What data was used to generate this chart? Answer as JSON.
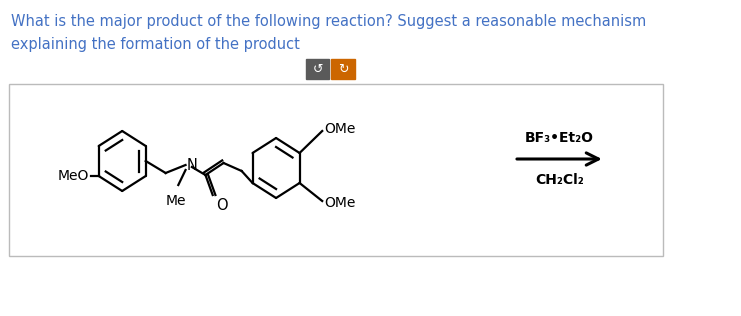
{
  "title_line1": "What is the major product of the following reaction? Suggest a reasonable mechanism",
  "title_line2": "explaining the formation of the product",
  "title_color": "#4472C4",
  "bg_color": "#ffffff",
  "reagent_line1": "BF₃•Et₂O",
  "reagent_line2": "CH₂Cl₂",
  "button1_color": "#5a5a5a",
  "button2_color": "#CC6600",
  "figsize": [
    7.41,
    3.16
  ],
  "dpi": 100
}
